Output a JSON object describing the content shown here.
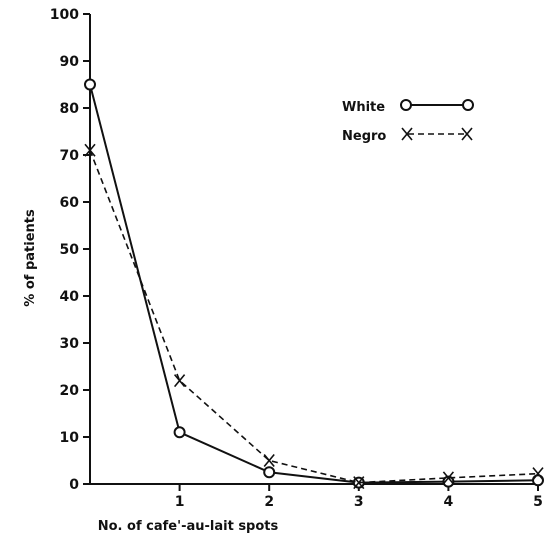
{
  "chart_data": {
    "type": "line",
    "title": "",
    "xlabel": "No. of cafe'-au-lait spots",
    "ylabel": "% of patients",
    "xlim": [
      0,
      5
    ],
    "ylim": [
      0,
      100
    ],
    "x_ticks": [
      1,
      2,
      3,
      4,
      5
    ],
    "y_ticks": [
      0,
      10,
      20,
      30,
      40,
      50,
      60,
      70,
      80,
      90,
      100
    ],
    "grid": false,
    "legend_position": "top-right",
    "series": [
      {
        "name": "White",
        "style": "solid",
        "marker": "circle",
        "x": [
          0,
          1,
          2,
          3,
          4,
          5
        ],
        "values": [
          85,
          11,
          2.5,
          0.3,
          0.5,
          0.8
        ]
      },
      {
        "name": "Negro",
        "style": "dashed",
        "marker": "x",
        "x": [
          0,
          1,
          2,
          3,
          4,
          5
        ],
        "values": [
          71,
          22,
          5,
          0.3,
          1.3,
          2.2
        ]
      }
    ]
  }
}
